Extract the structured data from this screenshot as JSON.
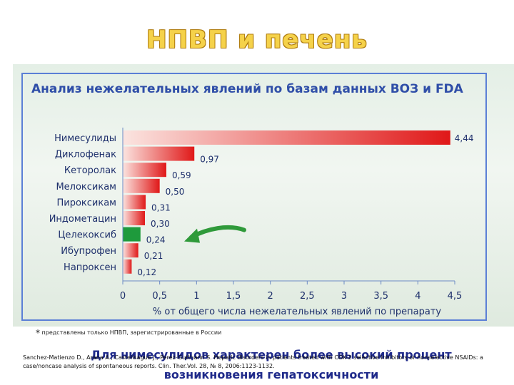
{
  "slide": {
    "title": "НПВП и печень",
    "footnote_marker": "*",
    "footnote": "представлены только НПВП, зарегистрированные в России",
    "conclusion": "Для нимесулидов характерен более высокий процент возникновения гепатоксичности",
    "reference": "Sanchez-Matienzo D., Arana A., Castellsague J., Perez-Gutthann S. Hepatic disorders in patients treated with COX-2 selective inhibitors or nonselective NSAIDs: a case/noncase analysis of spontaneous reports. Clin. Ther.Vol. 28, № 8, 2006:1123-1132."
  },
  "chart_data": {
    "type": "bar",
    "orientation": "horizontal",
    "title": "Анализ нежелательных явлений по базам данных ВОЗ и FDA",
    "xlabel": "% от общего числа нежелательных явлений по препарату",
    "ylabel": "",
    "xlim": [
      0,
      4.5
    ],
    "xticks": [
      "0",
      "0,5",
      "1",
      "1,5",
      "2",
      "2,5",
      "3",
      "3,5",
      "4",
      "4,5"
    ],
    "categories": [
      "Нимесулиды",
      "Диклофенак",
      "Кеторолак",
      "Мелоксикам",
      "Пироксикам",
      "Индометацин",
      "Целекоксиб",
      "Ибупрофен",
      "Напроксен"
    ],
    "values": [
      4.44,
      0.97,
      0.59,
      0.5,
      0.31,
      0.3,
      0.24,
      0.21,
      0.12
    ],
    "value_labels": [
      "4,44",
      "0,97",
      "0,59",
      "0,50",
      "0,31",
      "0,30",
      "0,24",
      "0,21",
      "0,12"
    ],
    "highlighted_category": "Целекоксиб",
    "colors": {
      "bar": "#e01818",
      "bar_light": "#fbe4e0",
      "highlight": "#1e9a3c",
      "arrow": "#2f9a3a",
      "axis": "#6b8ac4",
      "text": "#1d2f6b"
    },
    "annotation": "arrow pointing to Целекоксиб",
    "grid": false
  }
}
